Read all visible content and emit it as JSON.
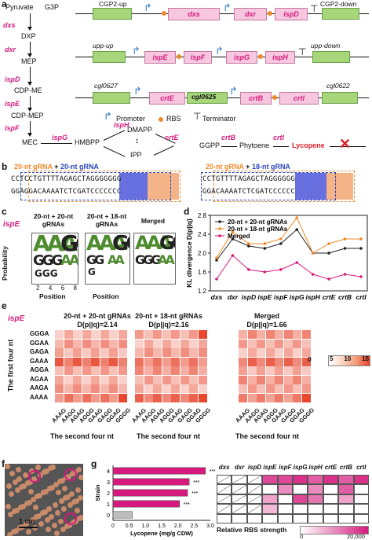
{
  "panels": {
    "a": "a",
    "b": "b",
    "c": "c",
    "d": "d",
    "e": "e",
    "f": "f",
    "g": "g"
  },
  "pathway": {
    "metabolites": [
      "Pyruvate",
      "G3P",
      "DXP",
      "MEP",
      "CDP-ME",
      "CDP-MEP",
      "MEC",
      "HMBPP",
      "DMAPP",
      "IPP",
      "GGPP",
      "Phytoene",
      "Lycopene"
    ],
    "enzymes": {
      "dxs": "dxs",
      "dxr": "dxr",
      "ispD": "ispD",
      "ispE": "ispE",
      "ispF": "ispF",
      "ispG": "ispG",
      "ispH": "ispH",
      "crtE": "crtE",
      "crtB": "crtB",
      "crtI": "crtI"
    }
  },
  "constructs": {
    "row1": {
      "left": "CGP2-up",
      "genes": [
        "dxs",
        "dxr",
        "ispD"
      ],
      "right": "CGP2-down"
    },
    "row2": {
      "left": "upp-up",
      "genes": [
        "ispE",
        "ispF",
        "ispG",
        "ispH"
      ],
      "right": "upp-down"
    },
    "row3": {
      "left": "cgl0627",
      "genes": [
        "crtE",
        "cgl0625",
        "crtB",
        "crtI"
      ],
      "right": "cgl0622"
    },
    "legend": {
      "promoter": "Promoter",
      "rbs": "RBS",
      "terminator": "Terminator"
    }
  },
  "grna": {
    "left_title_a": "20-nt gRNA",
    "plus": " + ",
    "left_title_b": "20-nt gRNA",
    "right_title_a": "20-nt gRNA",
    "right_title_b": "18-nt gRNA",
    "top_seq": "CCTCCTGTTTTAGAGCTAGGGGGGG",
    "bottom_seq": "GGAGGACAAAATCTCGATCCCCCCC",
    "right_top_seq": "CCTGTTTTAGAGCTAGGGGGG",
    "right_bottom_seq": "GGACAAAATCTCGATCCCCCC"
  },
  "logos": {
    "gene": "ispE",
    "titles": [
      "20-nt + 20-nt gRNAs",
      "20-nt + 18-nt gRNAs",
      "Merged"
    ],
    "ylabel": "Probability",
    "xlabel": "Position",
    "ticks": [
      "2",
      "4",
      "6",
      "8"
    ]
  },
  "chart_data": [
    {
      "type": "line",
      "ylabel": "KL divergence D(p||q)",
      "categories": [
        "dxs",
        "dxr",
        "ispD",
        "ispE",
        "ispF",
        "ispG",
        "ispH",
        "crtE",
        "crtB",
        "crtI"
      ],
      "ylim": [
        1.2,
        2.8
      ],
      "yticks": [
        "1.2",
        "1.6",
        "2.0",
        "2.4",
        "2.8"
      ],
      "series": [
        {
          "name": "20-nt + 20-nt gRNAs",
          "color": "#222222",
          "values": [
            1.85,
            2.3,
            2.15,
            2.1,
            2.2,
            2.5,
            2.0,
            2.0,
            2.1,
            2.1
          ]
        },
        {
          "name": "20-nt + 18-nt gRNAs",
          "color": "#f0892a",
          "values": [
            1.9,
            2.45,
            2.2,
            2.2,
            2.3,
            2.75,
            2.0,
            2.2,
            2.3,
            2.3
          ]
        },
        {
          "name": "Merged",
          "color": "#d61a7d",
          "values": [
            1.45,
            1.95,
            1.65,
            1.6,
            1.65,
            1.8,
            1.55,
            1.45,
            1.55,
            1.5
          ]
        }
      ],
      "legend": "top-left"
    },
    {
      "type": "bar",
      "xlabel": "Lycopene (mg/g CDW)",
      "ylabel": "Strain",
      "categories": [
        "0",
        "1",
        "2",
        "3",
        "4"
      ],
      "values": [
        0.6,
        2.05,
        2.3,
        2.35,
        2.85
      ],
      "xlim": [
        0,
        3.0
      ],
      "xticks": [
        "0",
        "0.5",
        "1.0",
        "1.5",
        "2.0",
        "2.5",
        "3.0"
      ],
      "significance": [
        "",
        "***",
        "***",
        "***",
        "***"
      ]
    }
  ],
  "heatmaps": {
    "gene": "ispE",
    "titles": [
      "20-nt + 20-nt gRNAs",
      "20-nt + 18-nt gRNAs",
      "Merged"
    ],
    "values": [
      "D(p||q)=2.14",
      "D(p||q)=2.16",
      "D(p||q)=1.66"
    ],
    "rows": [
      "GGGA",
      "GGAA",
      "GAGA",
      "GAAA",
      "AGGA",
      "AGAA",
      "AAGA",
      "AAAA"
    ],
    "cols": [
      "AAAG",
      "AAGG",
      "AGAG",
      "AGGG",
      "GAAG",
      "GAGG",
      "GGAG",
      "GGGG"
    ],
    "ylabel": "The first four nt",
    "xlabel": "The second four nt",
    "scale": [
      "0",
      "5",
      "10",
      "15"
    ]
  },
  "photo": {
    "scale": "1 cm"
  },
  "rbs_table": {
    "genes": [
      "dxs",
      "dxr",
      "ispD",
      "ispE",
      "ispF",
      "ispG",
      "ispH",
      "crtE",
      "crtB",
      "crtI"
    ],
    "legend": "Relative RBS strength",
    "min": "0",
    "max": "20,000"
  }
}
